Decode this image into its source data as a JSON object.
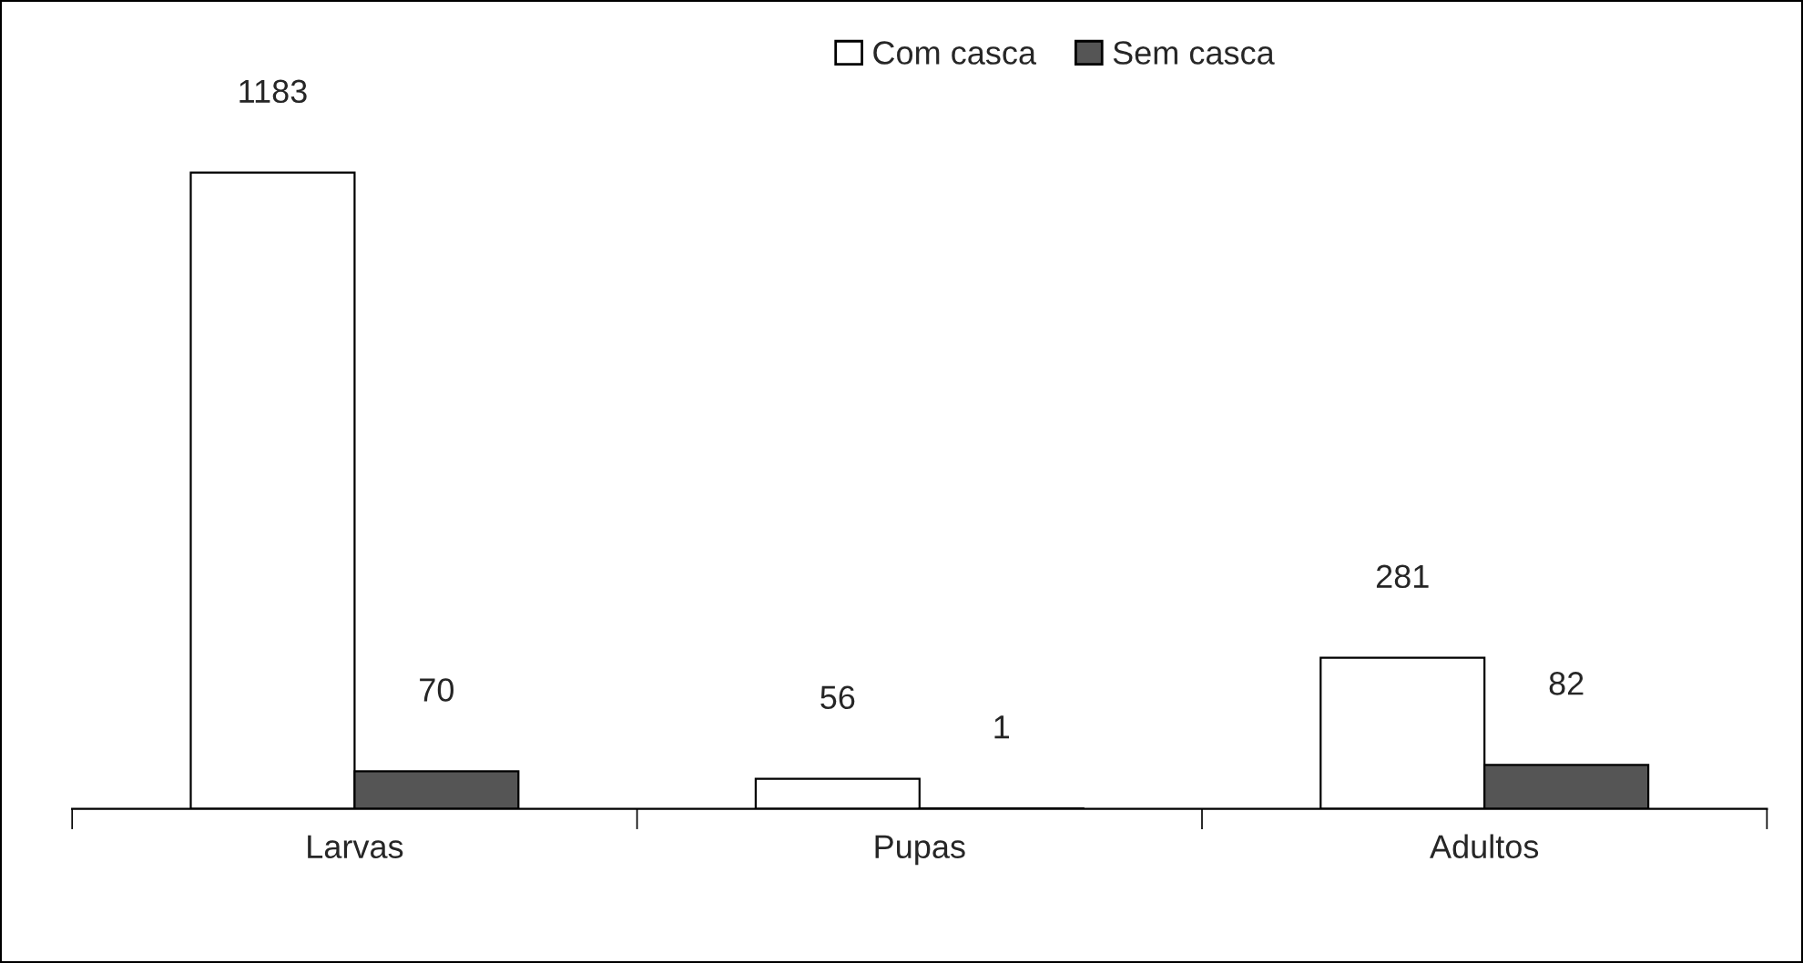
{
  "chart_data": {
    "type": "bar",
    "categories": [
      "Larvas",
      "Pupas",
      "Adultos"
    ],
    "series": [
      {
        "name": "Com casca",
        "color": "#ffffff",
        "values": [
          1183,
          56,
          281
        ]
      },
      {
        "name": "Sem casca",
        "color": "#555555",
        "values": [
          70,
          1,
          82
        ]
      }
    ],
    "data_labels": true,
    "legend": "top",
    "grid": false
  }
}
